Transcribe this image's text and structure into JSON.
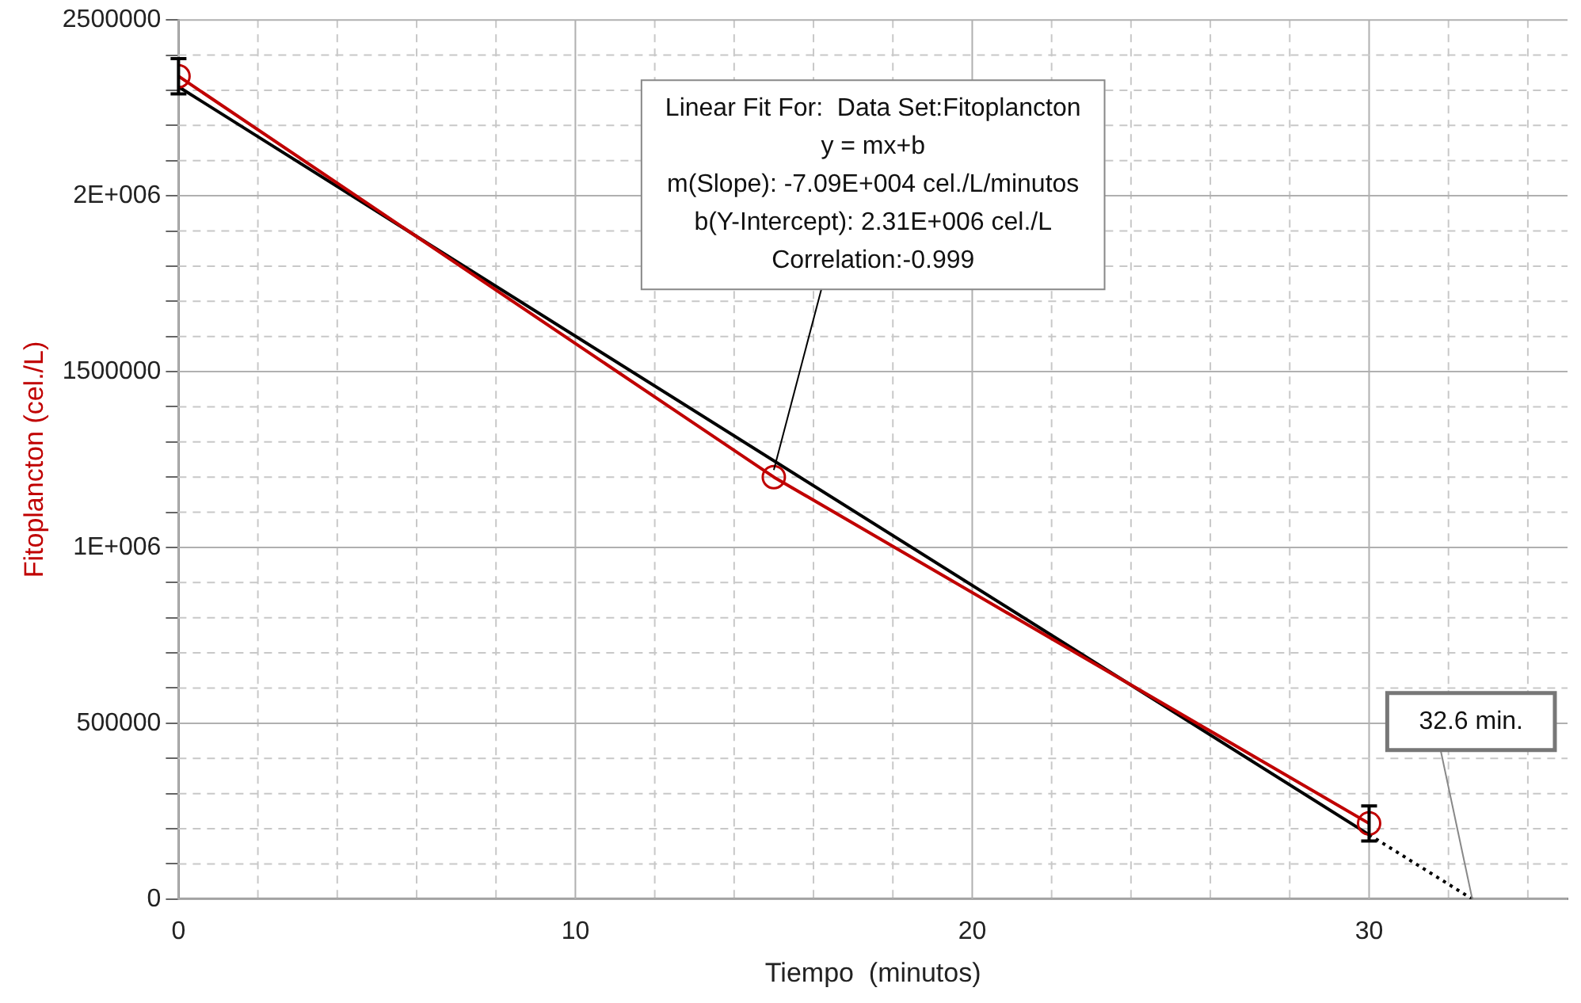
{
  "chart_data": {
    "type": "line",
    "xlabel": "Tiempo  (minutos)",
    "ylabel": "Fitoplancton (cel./L)",
    "xlim": [
      0,
      35
    ],
    "xticks": [
      0,
      {
        "value": 2,
        "label": null
      },
      {
        "value": 4,
        "label": null
      },
      {
        "value": 6,
        "label": null
      },
      {
        "value": 8,
        "label": null
      },
      10,
      {
        "value": 12,
        "label": null
      },
      {
        "value": 14,
        "label": null
      },
      {
        "value": 16,
        "label": null
      },
      {
        "value": 18,
        "label": null
      },
      20,
      {
        "value": 22,
        "label": null
      },
      {
        "value": 24,
        "label": null
      },
      {
        "value": 26,
        "label": null
      },
      {
        "value": 28,
        "label": null
      },
      30,
      {
        "value": 32,
        "label": null
      },
      {
        "value": 34,
        "label": null
      }
    ],
    "ylim": [
      0,
      2500000
    ],
    "yticks": [
      0,
      {
        "value": 100000,
        "label": null
      },
      {
        "value": 200000,
        "label": null
      },
      {
        "value": 300000,
        "label": null
      },
      {
        "value": 400000,
        "label": null
      },
      500000,
      {
        "value": 600000,
        "label": null
      },
      {
        "value": 700000,
        "label": null
      },
      {
        "value": 800000,
        "label": null
      },
      {
        "value": 900000,
        "label": null
      },
      {
        "value": 1000000,
        "label": "1E+006"
      },
      {
        "value": 1100000,
        "label": null
      },
      {
        "value": 1200000,
        "label": null
      },
      {
        "value": 1300000,
        "label": null
      },
      {
        "value": 1400000,
        "label": null
      },
      1500000,
      {
        "value": 1600000,
        "label": null
      },
      {
        "value": 1700000,
        "label": null
      },
      {
        "value": 1800000,
        "label": null
      },
      {
        "value": 1900000,
        "label": null
      },
      {
        "value": 2000000,
        "label": "2E+006"
      },
      {
        "value": 2100000,
        "label": null
      },
      {
        "value": 2200000,
        "label": null
      },
      {
        "value": 2300000,
        "label": null
      },
      {
        "value": 2400000,
        "label": null
      },
      2500000
    ],
    "grid": true,
    "series": [
      {
        "type": "line",
        "color": "#c00000",
        "marker": "circle",
        "x": [
          0,
          15,
          30
        ],
        "values": [
          2340000,
          1200000,
          215000
        ],
        "errors": [
          50000,
          null,
          50000
        ]
      },
      {
        "type": "line",
        "color": "#000000",
        "marker": "none",
        "x": [
          0,
          30
        ],
        "values": [
          2310000,
          183000
        ]
      },
      {
        "type": "line",
        "color": "#000000",
        "marker": "none",
        "line_style": "dotted",
        "x": [
          30,
          32.6
        ],
        "values": [
          183000,
          0
        ]
      }
    ],
    "annotations": [
      {
        "text": "Linear Fit For:  Data Set:Fitoplancton\ny = mx+b\nm(Slope): -7.09E+004 cel./L/minutos\nb(Y-Intercept): 2.31E+006 cel./L\nCorrelation:-0.999",
        "x": 15,
        "y": 1220000
      },
      {
        "text": "32.6 min.",
        "x": 32.6,
        "y": 0
      }
    ]
  }
}
